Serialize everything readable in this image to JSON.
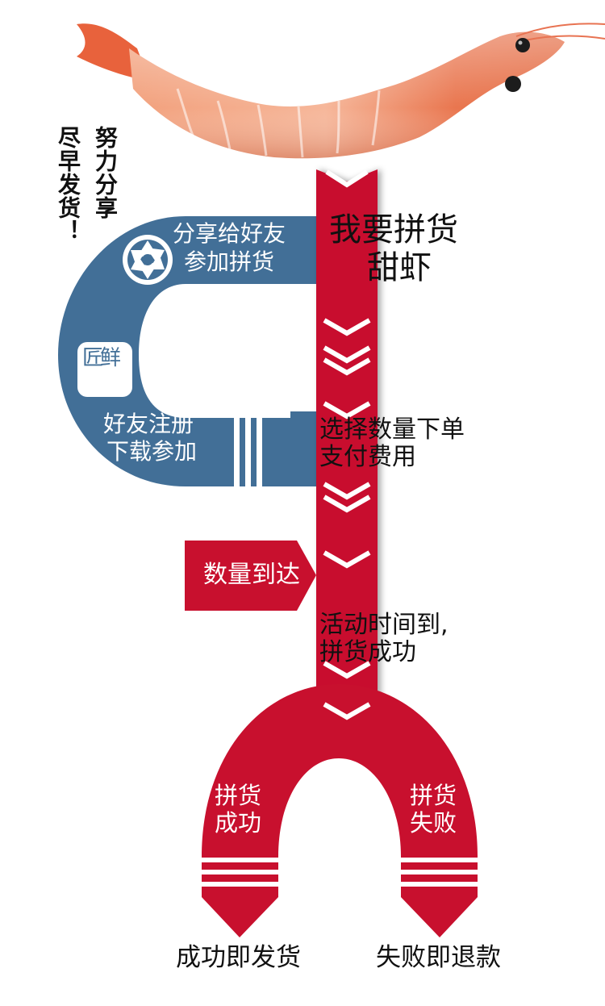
{
  "slogan": {
    "line1": "努力分享",
    "line2": "尽早发货！"
  },
  "main_stem": {
    "title_line1": "我要拼货",
    "title_line2": "甜虾"
  },
  "share_loop": {
    "top_label_line1": "分享给好友",
    "top_label_line2": "参加拼货",
    "bottom_label_line1": "好友注册",
    "bottom_label_line2": "下载参加",
    "app_logo_text": "匠鲜"
  },
  "steps": {
    "order_line1": "选择数量下单",
    "order_line2": "支付费用",
    "quantity_reached": "数量到达",
    "time_up_line1": "活动时间到,",
    "time_up_line2": "拼货成功"
  },
  "outcomes": {
    "success_label_line1": "拼货",
    "success_label_line2": "成功",
    "fail_label_line1": "拼货",
    "fail_label_line2": "失败",
    "success_result": "成功即发货",
    "fail_result": "失败即退款"
  },
  "colors": {
    "red": "#c8102e",
    "blue": "#426f97",
    "white": "#ffffff",
    "black": "#111111"
  }
}
